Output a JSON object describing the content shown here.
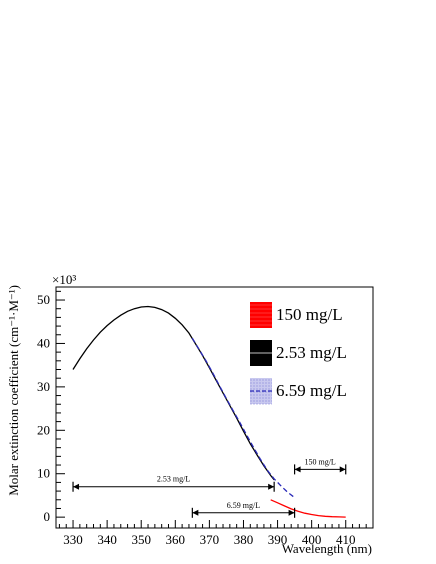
{
  "chart_data": {
    "type": "line",
    "title": "",
    "xlabel": "Wavelength (nm)",
    "ylabel": "Molar extinction coefficient (cm⁻¹·M⁻¹)",
    "y_multiplier_label": "×10³",
    "xlim": [
      325,
      418
    ],
    "ylim": [
      -2.5,
      53
    ],
    "x_ticks": [
      330,
      340,
      350,
      360,
      370,
      380,
      390,
      400,
      410
    ],
    "y_ticks": [
      0,
      10,
      20,
      30,
      40,
      50
    ],
    "grid": false,
    "legend_position": "top-right",
    "series": [
      {
        "name": "150 mg/L",
        "color": "#ff0000",
        "style": "solid",
        "x": [
          388,
          390,
          392,
          394,
          396,
          398,
          400,
          402,
          404,
          406,
          408,
          410
        ],
        "y": [
          4.0,
          3.3,
          2.6,
          1.9,
          1.35,
          0.9,
          0.6,
          0.35,
          0.2,
          0.1,
          0.05,
          0.0
        ]
      },
      {
        "name": "2.53 mg/L",
        "color": "#000000",
        "style": "solid",
        "x": [
          330,
          332,
          334,
          336,
          338,
          340,
          342,
          344,
          346,
          348,
          350,
          352,
          354,
          356,
          358,
          360,
          362,
          364,
          366,
          368,
          370,
          372,
          374,
          376,
          378,
          380,
          382,
          384,
          386,
          388,
          389
        ],
        "y": [
          34.0,
          36.5,
          38.8,
          40.8,
          42.6,
          44.1,
          45.4,
          46.5,
          47.4,
          48.0,
          48.4,
          48.5,
          48.3,
          47.8,
          47.0,
          45.8,
          44.3,
          42.4,
          39.8,
          37.2,
          34.4,
          31.5,
          28.6,
          25.7,
          22.8,
          19.8,
          16.9,
          14.3,
          11.8,
          9.6,
          8.6
        ]
      },
      {
        "name": "6.59 mg/L",
        "color": "#2a2ab8",
        "style": "dashed",
        "x": [
          365,
          367,
          369,
          371,
          373,
          375,
          377,
          379,
          381,
          383,
          385,
          387,
          389,
          391,
          393,
          395
        ],
        "y": [
          41.2,
          38.6,
          36.0,
          33.2,
          30.2,
          27.3,
          24.5,
          21.7,
          18.8,
          16.0,
          13.3,
          10.8,
          8.8,
          7.2,
          5.7,
          4.5
        ]
      }
    ],
    "range_annotations": [
      {
        "label": "2.53 mg/L",
        "x_start": 330,
        "x_end": 389,
        "y": 7.0
      },
      {
        "label": "6.59 mg/L",
        "x_start": 365,
        "x_end": 395,
        "y": 1.0
      },
      {
        "label": "150 mg/L",
        "x_start": 395,
        "x_end": 410,
        "y": 11.0
      }
    ]
  }
}
